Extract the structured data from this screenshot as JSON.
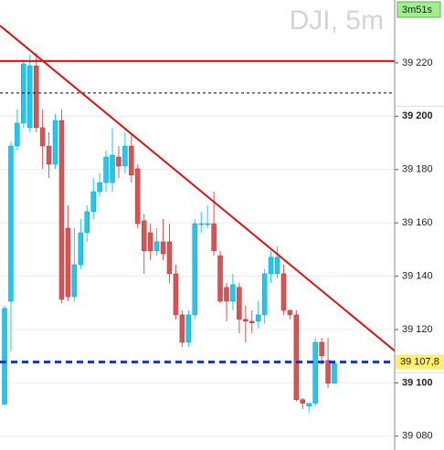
{
  "chart_data": {
    "type": "candlestick",
    "watermark": "DJI, 5m",
    "timer_label": "3m51s",
    "up_color": "#1ec8f0",
    "down_color": "#d75454",
    "ylim": [
      39074.8,
      39243.6
    ],
    "yticks": [
      {
        "value": 39080,
        "label": "39 080"
      },
      {
        "value": 39100,
        "label": "39 100"
      },
      {
        "value": 39120,
        "label": "39 120"
      },
      {
        "value": 39140,
        "label": "39 140"
      },
      {
        "value": 39160,
        "label": "39 160"
      },
      {
        "value": 39180,
        "label": "39 180"
      },
      {
        "value": 39200,
        "label": "39 200"
      },
      {
        "value": 39220,
        "label": "39 220"
      }
    ],
    "bold_ticks": [
      39100,
      39200
    ],
    "grid": true,
    "open": [
      39091.9,
      39130.6,
      39188.8,
      39197.4,
      39195.7,
      39218.9,
      39195.7,
      39188.8,
      39182.0,
      39198.4,
      39158.0,
      39132.3,
      39144.3,
      39156.3,
      39164.2,
      39171.7,
      39175.1,
      39175.1,
      39184.7,
      39181.3,
      39188.8,
      39180.3,
      39160.8,
      39156.3,
      39149.5,
      39152.9,
      39152.9,
      39140.9,
      39125.5,
      39115.2,
      39125.5,
      39159.7,
      39159.7,
      39159.7,
      39147.7,
      39135.8,
      39130.6,
      39135.8,
      39123.8,
      39123.1,
      39123.1,
      39125.5,
      39140.9,
      39140.9,
      39140.9,
      39127.2,
      39125.5,
      39093.7,
      39091.3,
      39092.3,
      39115.2,
      39108.4,
      39099.8
    ],
    "high": [
      39128.9,
      39190.5,
      39202.5,
      39221.3,
      39223.1,
      39223.7,
      39202.5,
      39194.0,
      39200.8,
      39202.5,
      39166.6,
      39158.0,
      39161.4,
      39166.6,
      39176.8,
      39178.6,
      39187.1,
      39195.7,
      39188.8,
      39194.0,
      39192.9,
      39182.0,
      39163.2,
      39159.7,
      39158.0,
      39161.4,
      39159.7,
      39144.3,
      39127.2,
      39127.2,
      39161.4,
      39164.2,
      39166.6,
      39171.7,
      39149.5,
      39137.5,
      39140.9,
      39137.5,
      39128.9,
      39127.2,
      39130.6,
      39142.6,
      39149.5,
      39151.2,
      39144.3,
      39127.2,
      39127.2,
      39094.3,
      39092.3,
      39116.9,
      39116.9,
      39116.9,
      39108.4
    ],
    "low": [
      39091.9,
      39111.8,
      39187.1,
      39195.7,
      39194.0,
      39194.0,
      39180.3,
      39176.8,
      39180.3,
      39129.9,
      39130.6,
      39130.6,
      39142.6,
      39152.9,
      39161.4,
      39170.0,
      39171.7,
      39171.7,
      39176.8,
      39178.6,
      39175.1,
      39158.0,
      39140.9,
      39146.0,
      39147.7,
      39146.0,
      39137.5,
      39123.8,
      39113.5,
      39113.5,
      39123.8,
      39156.3,
      39158.0,
      39147.7,
      39129.9,
      39123.1,
      39127.2,
      39118.6,
      39115.2,
      39118.6,
      39120.4,
      39122.1,
      39137.5,
      39139.2,
      39125.5,
      39123.8,
      39093.0,
      39090.2,
      39088.9,
      39091.3,
      39106.7,
      39098.1,
      39099.8
    ],
    "close": [
      39127.9,
      39188.8,
      39197.4,
      39219.6,
      39218.9,
      39195.7,
      39188.8,
      39182.0,
      39198.4,
      39131.3,
      39132.3,
      39144.3,
      39156.3,
      39164.2,
      39171.7,
      39175.1,
      39184.7,
      39185.4,
      39181.3,
      39188.8,
      39177.9,
      39159.7,
      39149.5,
      39149.5,
      39152.9,
      39148.4,
      39140.9,
      39125.5,
      39115.2,
      39125.5,
      39159.7,
      39159.7,
      39159.7,
      39149.5,
      39130.6,
      39130.6,
      39136.8,
      39123.8,
      39123.1,
      39122.5,
      39125.5,
      39140.9,
      39147.1,
      39147.1,
      39127.2,
      39125.5,
      39093.7,
      39092.3,
      39092.3,
      39115.2,
      39110.1,
      39099.8,
      39107.3
    ],
    "lines": [
      {
        "kind": "horizontal",
        "value": 39220.7,
        "color": "#e01010",
        "dash": false
      },
      {
        "kind": "horizontal",
        "value": 39208.7,
        "color": "#000000",
        "dash": true
      },
      {
        "kind": "trend",
        "values": [
          39234,
          39112
        ],
        "color": "#e01010",
        "dash": false
      }
    ],
    "current_price": {
      "value": 39107.8,
      "label": "39 107,8",
      "color": "#0033ee",
      "box_color": "#ffee66"
    }
  }
}
